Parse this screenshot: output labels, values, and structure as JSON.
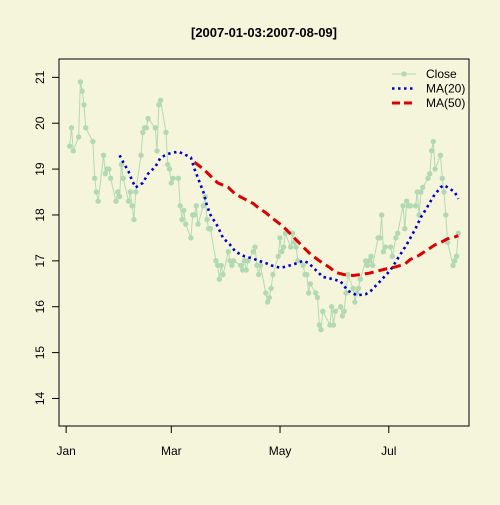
{
  "chart_data": {
    "type": "line",
    "title": "[2007-01-03:2007-08-09]",
    "xlabel": "",
    "ylabel": "",
    "x_range": [
      "2007-01-03",
      "2007-08-09"
    ],
    "xlim": [
      "2006-12-28",
      "2007-08-15"
    ],
    "ylim": [
      13.4,
      21.4
    ],
    "x_ticks": [
      {
        "date": "2007-01-01",
        "label": "Jan"
      },
      {
        "date": "2007-03-01",
        "label": "Mar"
      },
      {
        "date": "2007-05-01",
        "label": "May"
      },
      {
        "date": "2007-07-01",
        "label": "Jul"
      }
    ],
    "y_ticks": [
      {
        "value": 14,
        "label": "14"
      },
      {
        "value": 15,
        "label": "15"
      },
      {
        "value": 16,
        "label": "16"
      },
      {
        "value": 17,
        "label": "17"
      },
      {
        "value": 18,
        "label": "18"
      },
      {
        "value": 19,
        "label": "19"
      },
      {
        "value": 20,
        "label": "20"
      },
      {
        "value": 21,
        "label": "21"
      }
    ],
    "grid": false,
    "legend_position": "top-right",
    "series": [
      {
        "name": "Close",
        "style": "line-points",
        "color": "#b3d9b3",
        "points": [
          [
            "2007-01-03",
            19.5
          ],
          [
            "2007-01-04",
            19.9
          ],
          [
            "2007-01-05",
            19.4
          ],
          [
            "2007-01-08",
            19.7
          ],
          [
            "2007-01-09",
            20.9
          ],
          [
            "2007-01-10",
            20.7
          ],
          [
            "2007-01-11",
            20.4
          ],
          [
            "2007-01-12",
            19.9
          ],
          [
            "2007-01-16",
            19.6
          ],
          [
            "2007-01-17",
            18.8
          ],
          [
            "2007-01-18",
            18.5
          ],
          [
            "2007-01-19",
            18.3
          ],
          [
            "2007-01-22",
            19.3
          ],
          [
            "2007-01-23",
            18.9
          ],
          [
            "2007-01-24",
            19.0
          ],
          [
            "2007-01-25",
            19.0
          ],
          [
            "2007-01-26",
            18.8
          ],
          [
            "2007-01-29",
            18.3
          ],
          [
            "2007-01-30",
            18.5
          ],
          [
            "2007-01-31",
            18.4
          ],
          [
            "2007-02-01",
            19.1
          ],
          [
            "2007-02-02",
            18.8
          ],
          [
            "2007-02-05",
            18.3
          ],
          [
            "2007-02-06",
            18.5
          ],
          [
            "2007-02-07",
            18.2
          ],
          [
            "2007-02-08",
            17.9
          ],
          [
            "2007-02-09",
            18.5
          ],
          [
            "2007-02-12",
            19.3
          ],
          [
            "2007-02-13",
            19.8
          ],
          [
            "2007-02-14",
            19.9
          ],
          [
            "2007-02-15",
            19.9
          ],
          [
            "2007-02-16",
            20.1
          ],
          [
            "2007-02-20",
            19.9
          ],
          [
            "2007-02-21",
            19.4
          ],
          [
            "2007-02-22",
            20.4
          ],
          [
            "2007-02-23",
            20.5
          ],
          [
            "2007-02-26",
            19.8
          ],
          [
            "2007-02-27",
            19.1
          ],
          [
            "2007-02-28",
            19.0
          ],
          [
            "2007-03-01",
            18.7
          ],
          [
            "2007-03-02",
            18.8
          ],
          [
            "2007-03-05",
            18.8
          ],
          [
            "2007-03-06",
            18.2
          ],
          [
            "2007-03-07",
            17.9
          ],
          [
            "2007-03-08",
            18.1
          ],
          [
            "2007-03-09",
            17.8
          ],
          [
            "2007-03-12",
            17.5
          ],
          [
            "2007-03-13",
            18.0
          ],
          [
            "2007-03-14",
            18.0
          ],
          [
            "2007-03-15",
            18.2
          ],
          [
            "2007-03-16",
            17.8
          ],
          [
            "2007-03-19",
            18.2
          ],
          [
            "2007-03-20",
            18.4
          ],
          [
            "2007-03-21",
            17.9
          ],
          [
            "2007-03-22",
            17.7
          ],
          [
            "2007-03-23",
            17.7
          ],
          [
            "2007-03-26",
            17.0
          ],
          [
            "2007-03-27",
            16.9
          ],
          [
            "2007-03-28",
            16.6
          ],
          [
            "2007-03-29",
            16.9
          ],
          [
            "2007-03-30",
            16.7
          ],
          [
            "2007-04-02",
            17.2
          ],
          [
            "2007-04-03",
            17.0
          ],
          [
            "2007-04-04",
            16.9
          ],
          [
            "2007-04-05",
            17.0
          ],
          [
            "2007-04-09",
            16.9
          ],
          [
            "2007-04-10",
            16.8
          ],
          [
            "2007-04-11",
            17.0
          ],
          [
            "2007-04-12",
            16.8
          ],
          [
            "2007-04-13",
            17.0
          ],
          [
            "2007-04-16",
            17.2
          ],
          [
            "2007-04-17",
            17.3
          ],
          [
            "2007-04-18",
            16.9
          ],
          [
            "2007-04-19",
            16.7
          ],
          [
            "2007-04-20",
            16.9
          ],
          [
            "2007-04-23",
            16.3
          ],
          [
            "2007-04-24",
            16.1
          ],
          [
            "2007-04-25",
            16.2
          ],
          [
            "2007-04-26",
            16.4
          ],
          [
            "2007-04-27",
            16.7
          ],
          [
            "2007-04-30",
            17.1
          ],
          [
            "2007-05-01",
            17.5
          ],
          [
            "2007-05-02",
            17.2
          ],
          [
            "2007-05-03",
            17.3
          ],
          [
            "2007-05-04",
            17.6
          ],
          [
            "2007-05-07",
            17.3
          ],
          [
            "2007-05-08",
            17.6
          ],
          [
            "2007-05-09",
            17.4
          ],
          [
            "2007-05-10",
            17.3
          ],
          [
            "2007-05-11",
            17.0
          ],
          [
            "2007-05-14",
            16.9
          ],
          [
            "2007-05-15",
            16.7
          ],
          [
            "2007-05-16",
            16.7
          ],
          [
            "2007-05-17",
            16.3
          ],
          [
            "2007-05-18",
            16.5
          ],
          [
            "2007-05-21",
            16.3
          ],
          [
            "2007-05-22",
            16.2
          ],
          [
            "2007-05-23",
            15.6
          ],
          [
            "2007-05-24",
            15.5
          ],
          [
            "2007-05-25",
            15.9
          ],
          [
            "2007-05-29",
            15.6
          ],
          [
            "2007-05-30",
            16.0
          ],
          [
            "2007-05-31",
            15.6
          ],
          [
            "2007-06-01",
            15.9
          ],
          [
            "2007-06-04",
            16.0
          ],
          [
            "2007-06-05",
            15.8
          ],
          [
            "2007-06-06",
            15.9
          ],
          [
            "2007-06-07",
            16.3
          ],
          [
            "2007-06-08",
            16.7
          ],
          [
            "2007-06-11",
            16.4
          ],
          [
            "2007-06-12",
            16.1
          ],
          [
            "2007-06-13",
            16.3
          ],
          [
            "2007-06-14",
            16.4
          ],
          [
            "2007-06-15",
            16.6
          ],
          [
            "2007-06-18",
            17.0
          ],
          [
            "2007-06-19",
            16.9
          ],
          [
            "2007-06-20",
            17.0
          ],
          [
            "2007-06-21",
            17.1
          ],
          [
            "2007-06-22",
            16.9
          ],
          [
            "2007-06-25",
            17.5
          ],
          [
            "2007-06-26",
            17.5
          ],
          [
            "2007-06-27",
            18.0
          ],
          [
            "2007-06-28",
            17.2
          ],
          [
            "2007-06-29",
            17.3
          ],
          [
            "2007-07-02",
            17.3
          ],
          [
            "2007-07-03",
            17.1
          ],
          [
            "2007-07-05",
            17.5
          ],
          [
            "2007-07-06",
            17.6
          ],
          [
            "2007-07-09",
            18.2
          ],
          [
            "2007-07-10",
            17.7
          ],
          [
            "2007-07-11",
            18.3
          ],
          [
            "2007-07-12",
            18.2
          ],
          [
            "2007-07-13",
            18.2
          ],
          [
            "2007-07-16",
            18.2
          ],
          [
            "2007-07-17",
            18.5
          ],
          [
            "2007-07-18",
            18.0
          ],
          [
            "2007-07-19",
            18.5
          ],
          [
            "2007-07-20",
            18.6
          ],
          [
            "2007-07-23",
            18.8
          ],
          [
            "2007-07-24",
            18.9
          ],
          [
            "2007-07-25",
            19.4
          ],
          [
            "2007-07-26",
            19.6
          ],
          [
            "2007-07-27",
            19.0
          ],
          [
            "2007-07-30",
            19.3
          ],
          [
            "2007-07-31",
            18.8
          ],
          [
            "2007-08-01",
            18.5
          ],
          [
            "2007-08-02",
            18.0
          ],
          [
            "2007-08-03",
            17.4
          ],
          [
            "2007-08-06",
            16.9
          ],
          [
            "2007-08-07",
            17.0
          ],
          [
            "2007-08-08",
            17.1
          ],
          [
            "2007-08-09",
            17.6
          ]
        ]
      },
      {
        "name": "MA(20)",
        "style": "dotted",
        "color": "#0000cc",
        "points": [
          [
            "2007-01-31",
            19.3
          ],
          [
            "2007-02-02",
            19.15
          ],
          [
            "2007-02-05",
            18.95
          ],
          [
            "2007-02-07",
            18.75
          ],
          [
            "2007-02-09",
            18.6
          ],
          [
            "2007-02-13",
            18.7
          ],
          [
            "2007-02-16",
            18.9
          ],
          [
            "2007-02-20",
            19.05
          ],
          [
            "2007-02-23",
            19.25
          ],
          [
            "2007-02-27",
            19.33
          ],
          [
            "2007-03-01",
            19.35
          ],
          [
            "2007-03-05",
            19.38
          ],
          [
            "2007-03-08",
            19.33
          ],
          [
            "2007-03-12",
            19.25
          ],
          [
            "2007-03-14",
            19.0
          ],
          [
            "2007-03-19",
            18.5
          ],
          [
            "2007-03-21",
            18.2
          ],
          [
            "2007-03-23",
            18.0
          ],
          [
            "2007-03-27",
            17.75
          ],
          [
            "2007-03-30",
            17.5
          ],
          [
            "2007-04-03",
            17.35
          ],
          [
            "2007-04-06",
            17.2
          ],
          [
            "2007-04-11",
            17.1
          ],
          [
            "2007-04-16",
            17.05
          ],
          [
            "2007-04-19",
            17.0
          ],
          [
            "2007-04-23",
            16.95
          ],
          [
            "2007-04-26",
            16.9
          ],
          [
            "2007-05-01",
            16.85
          ],
          [
            "2007-05-04",
            16.87
          ],
          [
            "2007-05-09",
            16.93
          ],
          [
            "2007-05-14",
            17.0
          ],
          [
            "2007-05-17",
            16.95
          ],
          [
            "2007-05-21",
            16.8
          ],
          [
            "2007-05-25",
            16.65
          ],
          [
            "2007-05-31",
            16.6
          ],
          [
            "2007-06-04",
            16.55
          ],
          [
            "2007-06-08",
            16.35
          ],
          [
            "2007-06-13",
            16.25
          ],
          [
            "2007-06-18",
            16.27
          ],
          [
            "2007-06-21",
            16.35
          ],
          [
            "2007-06-26",
            16.55
          ],
          [
            "2007-07-02",
            16.8
          ],
          [
            "2007-07-06",
            17.05
          ],
          [
            "2007-07-11",
            17.35
          ],
          [
            "2007-07-16",
            17.7
          ],
          [
            "2007-07-19",
            17.95
          ],
          [
            "2007-07-23",
            18.2
          ],
          [
            "2007-07-26",
            18.4
          ],
          [
            "2007-07-30",
            18.6
          ],
          [
            "2007-08-01",
            18.65
          ],
          [
            "2007-08-03",
            18.6
          ],
          [
            "2007-08-07",
            18.5
          ],
          [
            "2007-08-09",
            18.35
          ]
        ]
      },
      {
        "name": "MA(50)",
        "style": "dashed",
        "color": "#dd0000",
        "points": [
          [
            "2007-03-14",
            19.15
          ],
          [
            "2007-03-19",
            19.0
          ],
          [
            "2007-03-23",
            18.85
          ],
          [
            "2007-03-27",
            18.7
          ],
          [
            "2007-04-02",
            18.6
          ],
          [
            "2007-04-06",
            18.45
          ],
          [
            "2007-04-11",
            18.35
          ],
          [
            "2007-04-16",
            18.25
          ],
          [
            "2007-04-19",
            18.15
          ],
          [
            "2007-04-23",
            18.05
          ],
          [
            "2007-04-26",
            17.95
          ],
          [
            "2007-05-01",
            17.8
          ],
          [
            "2007-05-04",
            17.7
          ],
          [
            "2007-05-09",
            17.5
          ],
          [
            "2007-05-14",
            17.3
          ],
          [
            "2007-05-18",
            17.15
          ],
          [
            "2007-05-23",
            17.0
          ],
          [
            "2007-05-29",
            16.85
          ],
          [
            "2007-06-01",
            16.75
          ],
          [
            "2007-06-06",
            16.7
          ],
          [
            "2007-06-11",
            16.68
          ],
          [
            "2007-06-15",
            16.7
          ],
          [
            "2007-06-20",
            16.73
          ],
          [
            "2007-06-25",
            16.78
          ],
          [
            "2007-06-29",
            16.82
          ],
          [
            "2007-07-05",
            16.87
          ],
          [
            "2007-07-10",
            16.93
          ],
          [
            "2007-07-13",
            17.03
          ],
          [
            "2007-07-18",
            17.12
          ],
          [
            "2007-07-23",
            17.25
          ],
          [
            "2007-07-27",
            17.35
          ],
          [
            "2007-07-31",
            17.42
          ],
          [
            "2007-08-03",
            17.48
          ],
          [
            "2007-08-07",
            17.52
          ],
          [
            "2007-08-09",
            17.55
          ]
        ]
      }
    ]
  }
}
